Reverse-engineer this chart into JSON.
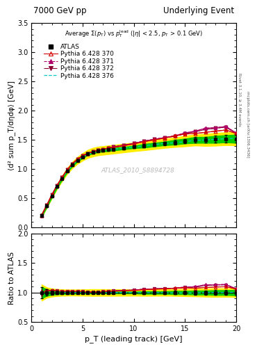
{
  "title_left": "7000 GeV pp",
  "title_right": "Underlying Event",
  "watermark": "ATLAS_2010_S8894728",
  "xlabel": "p_T (leading track) [GeV]",
  "ylabel_main": "⟨d² sum p_T/dηdφ⟩ [GeV]",
  "ylabel_ratio": "Ratio to ATLAS",
  "right_label1": "Rivet 3.1.10, ≥ 3.4M events",
  "right_label2": "mcplots.cern.ch [arXiv:1306.3436]",
  "ylim_main": [
    0.0,
    3.5
  ],
  "ylim_ratio": [
    0.5,
    2.0
  ],
  "xlim": [
    1,
    20
  ],
  "atlas_x": [
    1.0,
    1.5,
    2.0,
    2.5,
    3.0,
    3.5,
    4.0,
    4.5,
    5.0,
    5.5,
    6.0,
    6.5,
    7.0,
    7.5,
    8.0,
    9.0,
    10.0,
    11.0,
    12.0,
    13.0,
    14.0,
    15.0,
    16.0,
    17.0,
    18.0,
    19.0,
    20.0
  ],
  "atlas_y": [
    0.21,
    0.37,
    0.54,
    0.7,
    0.84,
    0.97,
    1.07,
    1.15,
    1.21,
    1.26,
    1.29,
    1.31,
    1.32,
    1.33,
    1.34,
    1.36,
    1.38,
    1.4,
    1.42,
    1.44,
    1.46,
    1.48,
    1.5,
    1.5,
    1.51,
    1.52,
    1.52
  ],
  "atlas_yerr": [
    0.02,
    0.02,
    0.02,
    0.02,
    0.02,
    0.02,
    0.02,
    0.02,
    0.02,
    0.02,
    0.02,
    0.02,
    0.02,
    0.02,
    0.02,
    0.02,
    0.02,
    0.03,
    0.03,
    0.03,
    0.04,
    0.04,
    0.05,
    0.05,
    0.06,
    0.06,
    0.07
  ],
  "atlas_syserr": [
    0.02,
    0.025,
    0.03,
    0.035,
    0.04,
    0.045,
    0.05,
    0.055,
    0.06,
    0.065,
    0.07,
    0.07,
    0.07,
    0.07,
    0.07,
    0.07,
    0.07,
    0.07,
    0.07,
    0.07,
    0.07,
    0.08,
    0.08,
    0.09,
    0.09,
    0.09,
    0.09
  ],
  "p370_x": [
    1.0,
    1.5,
    2.0,
    2.5,
    3.0,
    3.5,
    4.0,
    4.5,
    5.0,
    5.5,
    6.0,
    6.5,
    7.0,
    7.5,
    8.0,
    9.0,
    10.0,
    11.0,
    12.0,
    13.0,
    14.0,
    15.0,
    16.0,
    17.0,
    18.0,
    19.0,
    20.0
  ],
  "p370_y": [
    0.21,
    0.38,
    0.56,
    0.72,
    0.86,
    0.99,
    1.09,
    1.17,
    1.23,
    1.27,
    1.3,
    1.32,
    1.34,
    1.36,
    1.37,
    1.4,
    1.43,
    1.47,
    1.5,
    1.53,
    1.57,
    1.6,
    1.61,
    1.63,
    1.65,
    1.67,
    1.61
  ],
  "p371_x": [
    1.0,
    1.5,
    2.0,
    2.5,
    3.0,
    3.5,
    4.0,
    4.5,
    5.0,
    5.5,
    6.0,
    6.5,
    7.0,
    7.5,
    8.0,
    9.0,
    10.0,
    11.0,
    12.0,
    13.0,
    14.0,
    15.0,
    16.0,
    17.0,
    18.0,
    19.0,
    20.0
  ],
  "p371_y": [
    0.21,
    0.38,
    0.56,
    0.72,
    0.86,
    0.99,
    1.09,
    1.17,
    1.23,
    1.27,
    1.3,
    1.32,
    1.34,
    1.36,
    1.38,
    1.41,
    1.44,
    1.48,
    1.51,
    1.54,
    1.57,
    1.62,
    1.65,
    1.7,
    1.71,
    1.73,
    1.62
  ],
  "p372_x": [
    1.0,
    1.5,
    2.0,
    2.5,
    3.0,
    3.5,
    4.0,
    4.5,
    5.0,
    5.5,
    6.0,
    6.5,
    7.0,
    7.5,
    8.0,
    9.0,
    10.0,
    11.0,
    12.0,
    13.0,
    14.0,
    15.0,
    16.0,
    17.0,
    18.0,
    19.0,
    20.0
  ],
  "p372_y": [
    0.21,
    0.38,
    0.56,
    0.72,
    0.86,
    0.99,
    1.09,
    1.17,
    1.23,
    1.27,
    1.3,
    1.32,
    1.34,
    1.36,
    1.38,
    1.41,
    1.44,
    1.48,
    1.51,
    1.54,
    1.56,
    1.61,
    1.64,
    1.68,
    1.7,
    1.72,
    1.61
  ],
  "p376_x": [
    1.0,
    1.5,
    2.0,
    2.5,
    3.0,
    3.5,
    4.0,
    4.5,
    5.0,
    5.5,
    6.0,
    6.5,
    7.0,
    7.5,
    8.0,
    9.0,
    10.0,
    11.0,
    12.0,
    13.0,
    14.0,
    15.0,
    16.0,
    17.0,
    18.0,
    19.0,
    20.0
  ],
  "p376_y": [
    0.21,
    0.38,
    0.56,
    0.72,
    0.85,
    0.97,
    1.07,
    1.15,
    1.21,
    1.25,
    1.28,
    1.3,
    1.32,
    1.33,
    1.34,
    1.36,
    1.38,
    1.4,
    1.42,
    1.44,
    1.45,
    1.47,
    1.49,
    1.5,
    1.51,
    1.52,
    1.53
  ],
  "p_yerr": 0.01,
  "color_370": "#d40000",
  "color_371": "#b0006a",
  "color_372": "#8b0030",
  "color_376": "#00c8c8",
  "atlas_color": "#000000",
  "band_green": "#00cc00",
  "band_yellow": "#ffee00",
  "yticks_main": [
    0.0,
    0.5,
    1.0,
    1.5,
    2.0,
    2.5,
    3.0,
    3.5
  ],
  "yticks_ratio": [
    0.5,
    1.0,
    1.5,
    2.0
  ],
  "xticks": [
    0,
    5,
    10,
    15,
    20
  ]
}
